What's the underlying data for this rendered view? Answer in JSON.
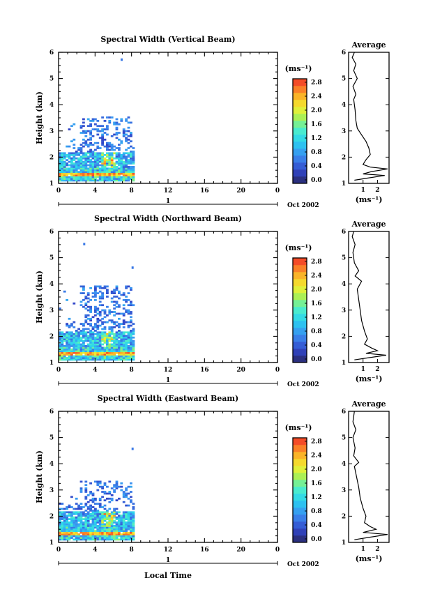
{
  "chart_data": [
    {
      "type": "heatmap",
      "title": "Spectral Width (Vertical Beam)",
      "ylabel": "Height (km)",
      "xlabel": "",
      "x_ticks": [
        "0",
        "4",
        "8",
        "12",
        "16",
        "20",
        "0"
      ],
      "y_ticks": [
        "1",
        "2",
        "3",
        "4",
        "5",
        "6"
      ],
      "xlim": [
        0,
        24
      ],
      "ylim": [
        1,
        6
      ],
      "date_axis": {
        "day_label": "1",
        "month_year": "Oct 2002"
      },
      "colorbar": {
        "unit": "(ms⁻¹)",
        "ticks": [
          "2.8",
          "2.4",
          "2.0",
          "1.6",
          "1.2",
          "0.8",
          "0.4",
          "0.0"
        ],
        "vmin": 0.0,
        "vmax": 3.0
      },
      "data_extent": {
        "x": [
          0,
          8.2
        ],
        "y": [
          1.15,
          3.5
        ]
      },
      "outlier_points": [
        {
          "x": 6.8,
          "y": 5.7
        }
      ],
      "profile": {
        "title": "Average",
        "xlabel": "(ms⁻¹)",
        "x_ticks": [
          "1",
          "2"
        ],
        "y_ticks": [
          "1",
          "2",
          "3",
          "4",
          "5",
          "6"
        ],
        "xlim": [
          0,
          2.8
        ],
        "points": [
          [
            0.4,
            1.12
          ],
          [
            1.3,
            1.2
          ],
          [
            2.5,
            1.3
          ],
          [
            1.0,
            1.36
          ],
          [
            1.6,
            1.45
          ],
          [
            2.7,
            1.55
          ],
          [
            1.5,
            1.62
          ],
          [
            1.0,
            1.72
          ],
          [
            1.2,
            1.9
          ],
          [
            1.5,
            2.1
          ],
          [
            1.4,
            2.35
          ],
          [
            1.2,
            2.6
          ],
          [
            0.9,
            2.85
          ],
          [
            0.6,
            3.1
          ],
          [
            0.5,
            3.4
          ],
          [
            0.45,
            3.8
          ],
          [
            0.35,
            4.2
          ],
          [
            0.5,
            4.4
          ],
          [
            0.3,
            4.7
          ],
          [
            0.6,
            5.0
          ],
          [
            0.35,
            5.3
          ],
          [
            0.5,
            5.55
          ],
          [
            0.25,
            5.8
          ],
          [
            0.4,
            6.0
          ]
        ]
      }
    },
    {
      "type": "heatmap",
      "title": "Spectral Width (Northward Beam)",
      "ylabel": "Height (km)",
      "xlabel": "",
      "x_ticks": [
        "0",
        "4",
        "8",
        "12",
        "16",
        "20",
        "0"
      ],
      "y_ticks": [
        "1",
        "2",
        "3",
        "4",
        "5",
        "6"
      ],
      "xlim": [
        0,
        24
      ],
      "ylim": [
        1,
        6
      ],
      "date_axis": {
        "day_label": "1",
        "month_year": "Oct 2002"
      },
      "colorbar": {
        "unit": "(ms⁻¹)",
        "ticks": [
          "2.8",
          "2.4",
          "2.0",
          "1.6",
          "1.2",
          "0.8",
          "0.4",
          "0.0"
        ],
        "vmin": 0.0,
        "vmax": 3.0
      },
      "data_extent": {
        "x": [
          0,
          8.3
        ],
        "y": [
          1.1,
          3.9
        ]
      },
      "outlier_points": [
        {
          "x": 2.7,
          "y": 5.5
        },
        {
          "x": 8.0,
          "y": 4.6
        }
      ],
      "profile": {
        "title": "Average",
        "xlabel": "(ms⁻¹)",
        "x_ticks": [
          "1",
          "2"
        ],
        "y_ticks": [
          "1",
          "2",
          "3",
          "4",
          "5",
          "6"
        ],
        "xlim": [
          0,
          2.8
        ],
        "points": [
          [
            0.4,
            1.1
          ],
          [
            1.6,
            1.2
          ],
          [
            2.6,
            1.28
          ],
          [
            1.2,
            1.35
          ],
          [
            2.0,
            1.45
          ],
          [
            1.6,
            1.55
          ],
          [
            1.1,
            1.7
          ],
          [
            1.3,
            1.9
          ],
          [
            1.1,
            2.2
          ],
          [
            0.9,
            2.6
          ],
          [
            0.8,
            3.0
          ],
          [
            0.7,
            3.4
          ],
          [
            0.6,
            3.8
          ],
          [
            0.9,
            4.1
          ],
          [
            0.45,
            4.3
          ],
          [
            0.7,
            4.5
          ],
          [
            0.4,
            4.8
          ],
          [
            0.3,
            5.2
          ],
          [
            0.45,
            5.5
          ],
          [
            0.25,
            5.8
          ],
          [
            0.35,
            6.0
          ]
        ]
      }
    },
    {
      "type": "heatmap",
      "title": "Spectral Width (Eastward Beam)",
      "ylabel": "Height (km)",
      "xlabel": "Local Time",
      "x_ticks": [
        "0",
        "4",
        "8",
        "12",
        "16",
        "20",
        "0"
      ],
      "y_ticks": [
        "1",
        "2",
        "3",
        "4",
        "5",
        "6"
      ],
      "xlim": [
        0,
        24
      ],
      "ylim": [
        1,
        6
      ],
      "date_axis": {
        "day_label": "1",
        "month_year": "Oct 2002"
      },
      "colorbar": {
        "unit": "(ms⁻¹)",
        "ticks": [
          "2.8",
          "2.4",
          "2.0",
          "1.6",
          "1.2",
          "0.8",
          "0.4",
          "0.0"
        ],
        "vmin": 0.0,
        "vmax": 3.0
      },
      "data_extent": {
        "x": [
          0,
          8.2
        ],
        "y": [
          1.1,
          3.3
        ]
      },
      "outlier_points": [
        {
          "x": 8.0,
          "y": 4.55
        }
      ],
      "profile": {
        "title": "Average",
        "xlabel": "(ms⁻¹)",
        "x_ticks": [
          "1",
          "2"
        ],
        "y_ticks": [
          "1",
          "2",
          "3",
          "4",
          "5",
          "6"
        ],
        "xlim": [
          0,
          2.8
        ],
        "points": [
          [
            0.4,
            1.1
          ],
          [
            1.5,
            1.2
          ],
          [
            2.7,
            1.3
          ],
          [
            1.0,
            1.38
          ],
          [
            1.9,
            1.5
          ],
          [
            1.5,
            1.6
          ],
          [
            1.1,
            1.75
          ],
          [
            1.2,
            2.0
          ],
          [
            1.0,
            2.3
          ],
          [
            0.8,
            2.7
          ],
          [
            0.7,
            3.1
          ],
          [
            0.55,
            3.5
          ],
          [
            0.4,
            3.9
          ],
          [
            0.7,
            4.05
          ],
          [
            0.35,
            4.3
          ],
          [
            0.45,
            4.6
          ],
          [
            0.3,
            5.0
          ],
          [
            0.5,
            5.3
          ],
          [
            0.3,
            5.6
          ],
          [
            0.4,
            6.0
          ]
        ]
      }
    }
  ]
}
